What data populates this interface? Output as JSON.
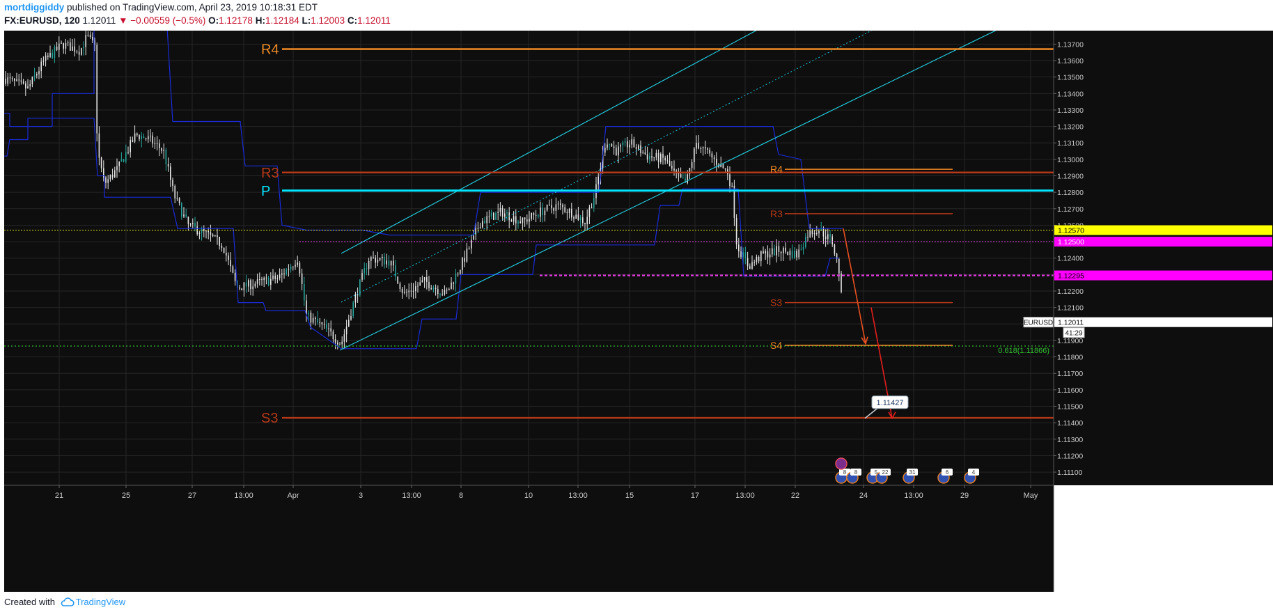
{
  "header": {
    "author": "mortdiggiddy",
    "published": "published on TradingView.com, April 23, 2019 10:18:31 EDT",
    "symbol": "FX:EURUSD, 120",
    "last": "1.12011",
    "change": "−0.00559 (−0.5%)",
    "o_label": "O:",
    "o_value": "1.12178",
    "h_label": "H:",
    "h_value": "1.12184",
    "l_label": "L:",
    "l_value": "1.12003",
    "c_label": "C:",
    "c_value": "1.12011"
  },
  "footer": {
    "created_with": "Created with",
    "brand": "TradingView"
  },
  "colors": {
    "background": "#0e0e0e",
    "grid": "#262626",
    "axis_text": "#cccccc",
    "candle": "#e8e8e8",
    "candle_teal": "#26a69a",
    "channel": "#1a2bd8",
    "pitchfork": "#22c6d8",
    "pivot_p": "#00e5ff",
    "r4": "#f08a24",
    "r3": "#b53818",
    "s3": "#b53818",
    "s4": "#f08a24",
    "magenta": "#e03ae0",
    "yellow": "#e3e318",
    "fib_green": "#33c033",
    "arrow": "#e61e1e"
  },
  "chart_data": {
    "type": "candlestick",
    "symbol": "EURUSD",
    "timeframe": "120",
    "ylim": [
      1.1102,
      1.13782
    ],
    "y_ticks": [
      "1.13700",
      "1.13600",
      "1.13500",
      "1.13400",
      "1.13300",
      "1.13200",
      "1.13100",
      "1.13000",
      "1.12900",
      "1.12800",
      "1.12700",
      "1.12600",
      "1.12500",
      "1.12400",
      "1.12300",
      "1.12200",
      "1.12100",
      "1.12000",
      "1.11900",
      "1.11800",
      "1.11700",
      "1.11600",
      "1.11500",
      "1.11400",
      "1.11300",
      "1.11200",
      "1.11100"
    ],
    "x_ticks": [
      "21",
      "25",
      "27",
      "13:00",
      "Apr",
      "3",
      "13:00",
      "8",
      "10",
      "13:00",
      "15",
      "17",
      "13:00",
      "22",
      "24",
      "13:00",
      "29",
      "May"
    ],
    "pivot_levels_weekly": [
      {
        "label": "R4",
        "price": 1.1367
      },
      {
        "label": "R3",
        "price": 1.1292
      },
      {
        "label": "P",
        "price": 1.1281
      },
      {
        "label": "S3",
        "price": 1.1143
      }
    ],
    "pivot_levels_daily": [
      {
        "label": "R4",
        "price": 1.1294
      },
      {
        "label": "R3",
        "price": 1.1267
      },
      {
        "label": "S3",
        "price": 1.1213
      },
      {
        "label": "S4",
        "price": 1.1187
      }
    ],
    "price_tags": [
      {
        "text": "1.12570",
        "price": 1.1257,
        "bg": "#ffff00",
        "fg": "#000000"
      },
      {
        "text": "1.12500",
        "price": 1.125,
        "bg": "#ff00ff",
        "fg": "#ffffff"
      },
      {
        "text": "1.12295",
        "price": 1.12295,
        "bg": "#ff00ff",
        "fg": "#000000"
      }
    ],
    "last_price_tag": {
      "symbol": "EURUSD",
      "value": "1.12011",
      "countdown": "41:29",
      "price": 1.12011
    },
    "fib_level": {
      "text": "0.618(1.11866)",
      "price": 1.11866
    },
    "target_callout": {
      "text": "1.11427",
      "price": 1.11427
    },
    "event_badges": [
      "8",
      "8",
      "5",
      "22",
      "31",
      "6",
      "4"
    ]
  }
}
